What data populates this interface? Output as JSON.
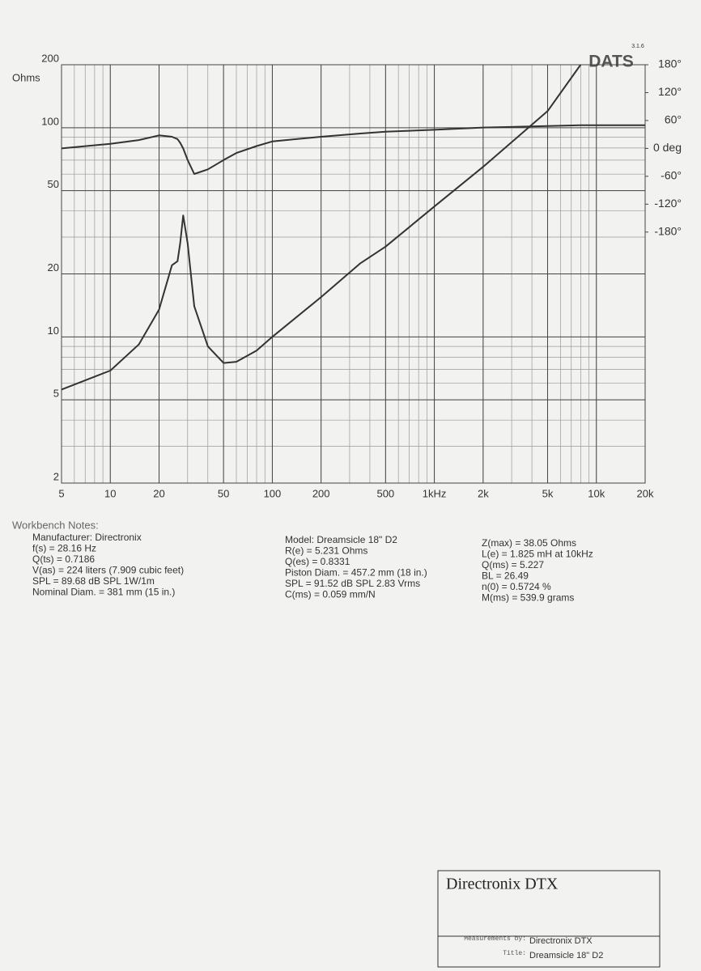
{
  "chart_data": {
    "type": "line",
    "brand": "DATS",
    "version": "3.1.6",
    "y_label": "Ohms",
    "log_x": true,
    "log_y": true,
    "grid": true,
    "x": [
      5,
      10,
      15,
      20,
      24,
      26,
      27,
      28.16,
      30,
      33,
      40,
      50,
      60,
      80,
      100,
      200,
      350,
      500,
      1000,
      2000,
      5000,
      8000,
      20000
    ],
    "series": [
      {
        "color": "#333333",
        "values": [
          5.6,
          6.9,
          9.2,
          13.5,
          22,
          23,
          28,
          38.05,
          28,
          14,
          9,
          7.5,
          7.6,
          8.6,
          10,
          15.5,
          22.5,
          27,
          42,
          65,
          120,
          200,
          null
        ]
      },
      {
        "color": "#333333",
        "axis": "y2",
        "values": [
          0,
          10,
          18,
          28,
          25,
          20,
          12,
          0,
          -25,
          -55,
          -45,
          -25,
          -10,
          5,
          15,
          25,
          32,
          36,
          40,
          45,
          48,
          50,
          50
        ]
      }
    ],
    "xlim": [
      5,
      20000
    ],
    "ylim": [
      2,
      200
    ],
    "y2lim": [
      -720,
      180
    ],
    "xticks": [
      5,
      10,
      20,
      50,
      100,
      200,
      500,
      {
        "value": 1000,
        "label": "1kHz"
      },
      {
        "value": 2000,
        "label": "2k"
      },
      {
        "value": 5000,
        "label": "5k"
      },
      {
        "value": 10000,
        "label": "10k"
      },
      {
        "value": 20000,
        "label": "20k"
      }
    ],
    "yticks": [
      2,
      5,
      10,
      20,
      50,
      100,
      200
    ],
    "y2ticks": [
      {
        "value": 180,
        "label": "180°"
      },
      {
        "value": 120,
        "label": "120°"
      },
      {
        "value": 60,
        "label": "60°"
      },
      {
        "value": 0,
        "label": "0 deg"
      },
      {
        "value": -60,
        "label": "-60°"
      },
      {
        "value": -120,
        "label": "-120°"
      },
      {
        "value": -180,
        "label": "-180°"
      }
    ]
  },
  "notes": {
    "heading": "Workbench Notes:",
    "col1": [
      "Manufacturer: Directronix",
      "f(s) = 28.16 Hz",
      "Q(ts) = 0.7186",
      "V(as) = 224 liters  (7.909 cubic feet)",
      "SPL = 89.68 dB SPL 1W/1m",
      "Nominal Diam. = 381 mm (15 in.)"
    ],
    "col2": [
      "Model: Dreamsicle 18\" D2",
      "R(e) = 5.231 Ohms",
      "Q(es) = 0.8331",
      "Piston Diam. = 457.2 mm (18 in.)",
      "SPL = 91.52 dB SPL 2.83 Vrms",
      "C(ms) = 0.059 mm/N"
    ],
    "col3": [
      "Z(max) = 38.05 Ohms",
      "L(e) = 1.825 mH at 10kHz",
      "Q(ms) = 5.227",
      "BL = 26.49",
      "n(0) = 0.5724 %",
      "M(ms) = 539.9 grams"
    ]
  },
  "title_block": {
    "title": "Directronix DTX",
    "measured_by_label": "Measurements by:",
    "measured_by": "Directronix DTX",
    "title_label": "Title:",
    "title_value": "Dreamsicle 18\" D2"
  }
}
